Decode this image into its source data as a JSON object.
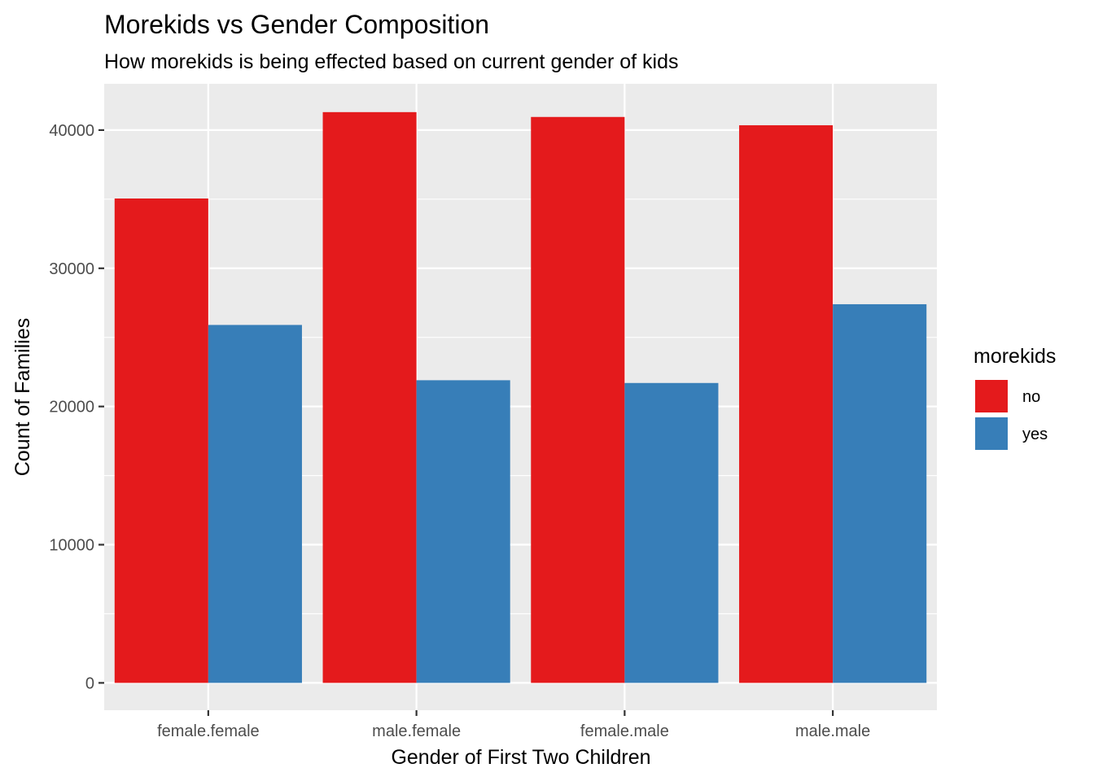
{
  "chart_data": {
    "type": "bar",
    "title": "Morekids vs Gender Composition",
    "subtitle": "How morekids is being effected based on current gender of kids",
    "xlabel": "Gender of First Two Children",
    "ylabel": "Count of Families",
    "categories": [
      "female.female",
      "male.female",
      "female.male",
      "male.male"
    ],
    "series": [
      {
        "name": "no",
        "color": "#e41a1c",
        "values": [
          35050,
          41300,
          40950,
          40350
        ]
      },
      {
        "name": "yes",
        "color": "#377eb8",
        "values": [
          25900,
          21900,
          21700,
          27400
        ]
      }
    ],
    "ylim": [
      -1978,
      43350
    ],
    "yticks": [
      0,
      10000,
      20000,
      30000,
      40000
    ],
    "ytick_labels": [
      "0",
      "10000",
      "20000",
      "30000",
      "40000"
    ],
    "grid": true,
    "legend": {
      "title": "morekids",
      "position": "right"
    },
    "panel_background": "#ebebeb"
  }
}
